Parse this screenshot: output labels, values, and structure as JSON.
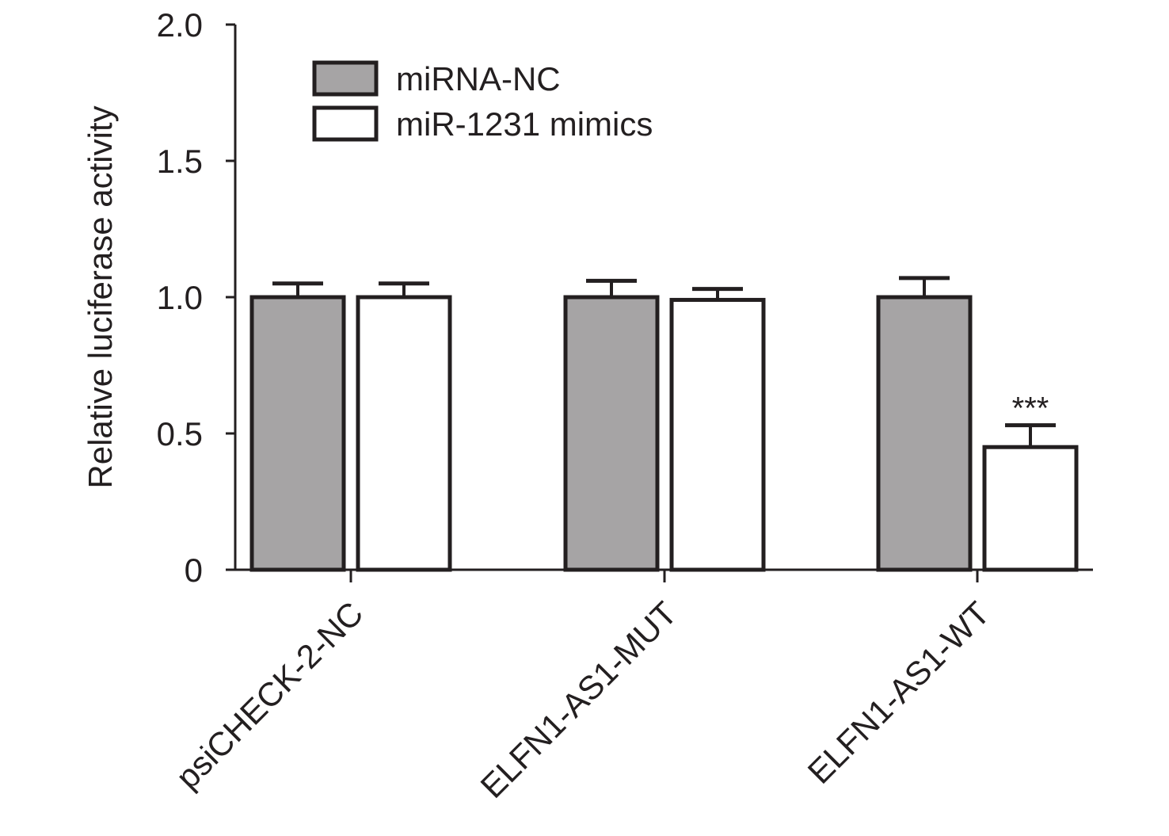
{
  "chart_data": {
    "type": "bar",
    "title": "",
    "xlabel": "",
    "ylabel": "Relative luciferase activity",
    "ylim": [
      0,
      2.0
    ],
    "yticks": [
      0,
      0.5,
      1.0,
      1.5,
      2.0
    ],
    "ytick_labels": [
      "0",
      "0.5",
      "1.0",
      "1.5",
      "2.0"
    ],
    "categories": [
      "psiCHECK-2-NC",
      "ELFN1-AS1-MUT",
      "ELFN1-AS1-WT"
    ],
    "series": [
      {
        "name": "miRNA-NC",
        "color": "#a6a4a5",
        "values": [
          1.0,
          1.0,
          1.0
        ],
        "errors": [
          0.05,
          0.06,
          0.07
        ]
      },
      {
        "name": "miR-1231 mimics",
        "color": "#ffffff",
        "values": [
          1.0,
          0.99,
          0.45
        ],
        "errors": [
          0.05,
          0.04,
          0.08
        ]
      }
    ],
    "annotations": [
      {
        "category": "ELFN1-AS1-WT",
        "series": "miR-1231 mimics",
        "text": "***"
      }
    ],
    "legend_position": "top-left",
    "grid": false
  }
}
